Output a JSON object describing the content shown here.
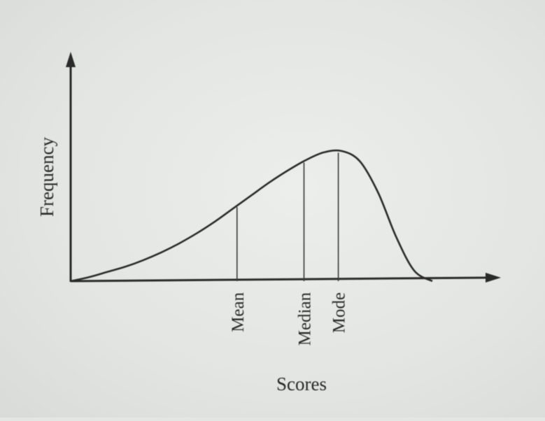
{
  "chart_data": {
    "type": "line",
    "title": "",
    "xlabel": "Scores",
    "ylabel": "Frequency",
    "x": [
      0,
      0.5,
      1,
      1.5,
      2,
      2.5,
      3,
      3.5,
      4,
      4.5,
      5,
      5.5,
      6,
      6.5,
      7,
      7.5,
      8,
      8.5,
      9,
      9.5,
      10
    ],
    "values": [
      0,
      0.03,
      0.07,
      0.11,
      0.16,
      0.22,
      0.29,
      0.37,
      0.46,
      0.56,
      0.66,
      0.76,
      0.85,
      0.93,
      0.99,
      1.0,
      0.92,
      0.68,
      0.34,
      0.08,
      0.0
    ],
    "xlim": [
      0,
      10
    ],
    "ylim": [
      0,
      1.3
    ],
    "grid": false,
    "annotations": [
      {
        "label": "Mean",
        "x": 4.6
      },
      {
        "label": "Median",
        "x": 6.45
      },
      {
        "label": "Mode",
        "x": 7.4
      }
    ]
  }
}
